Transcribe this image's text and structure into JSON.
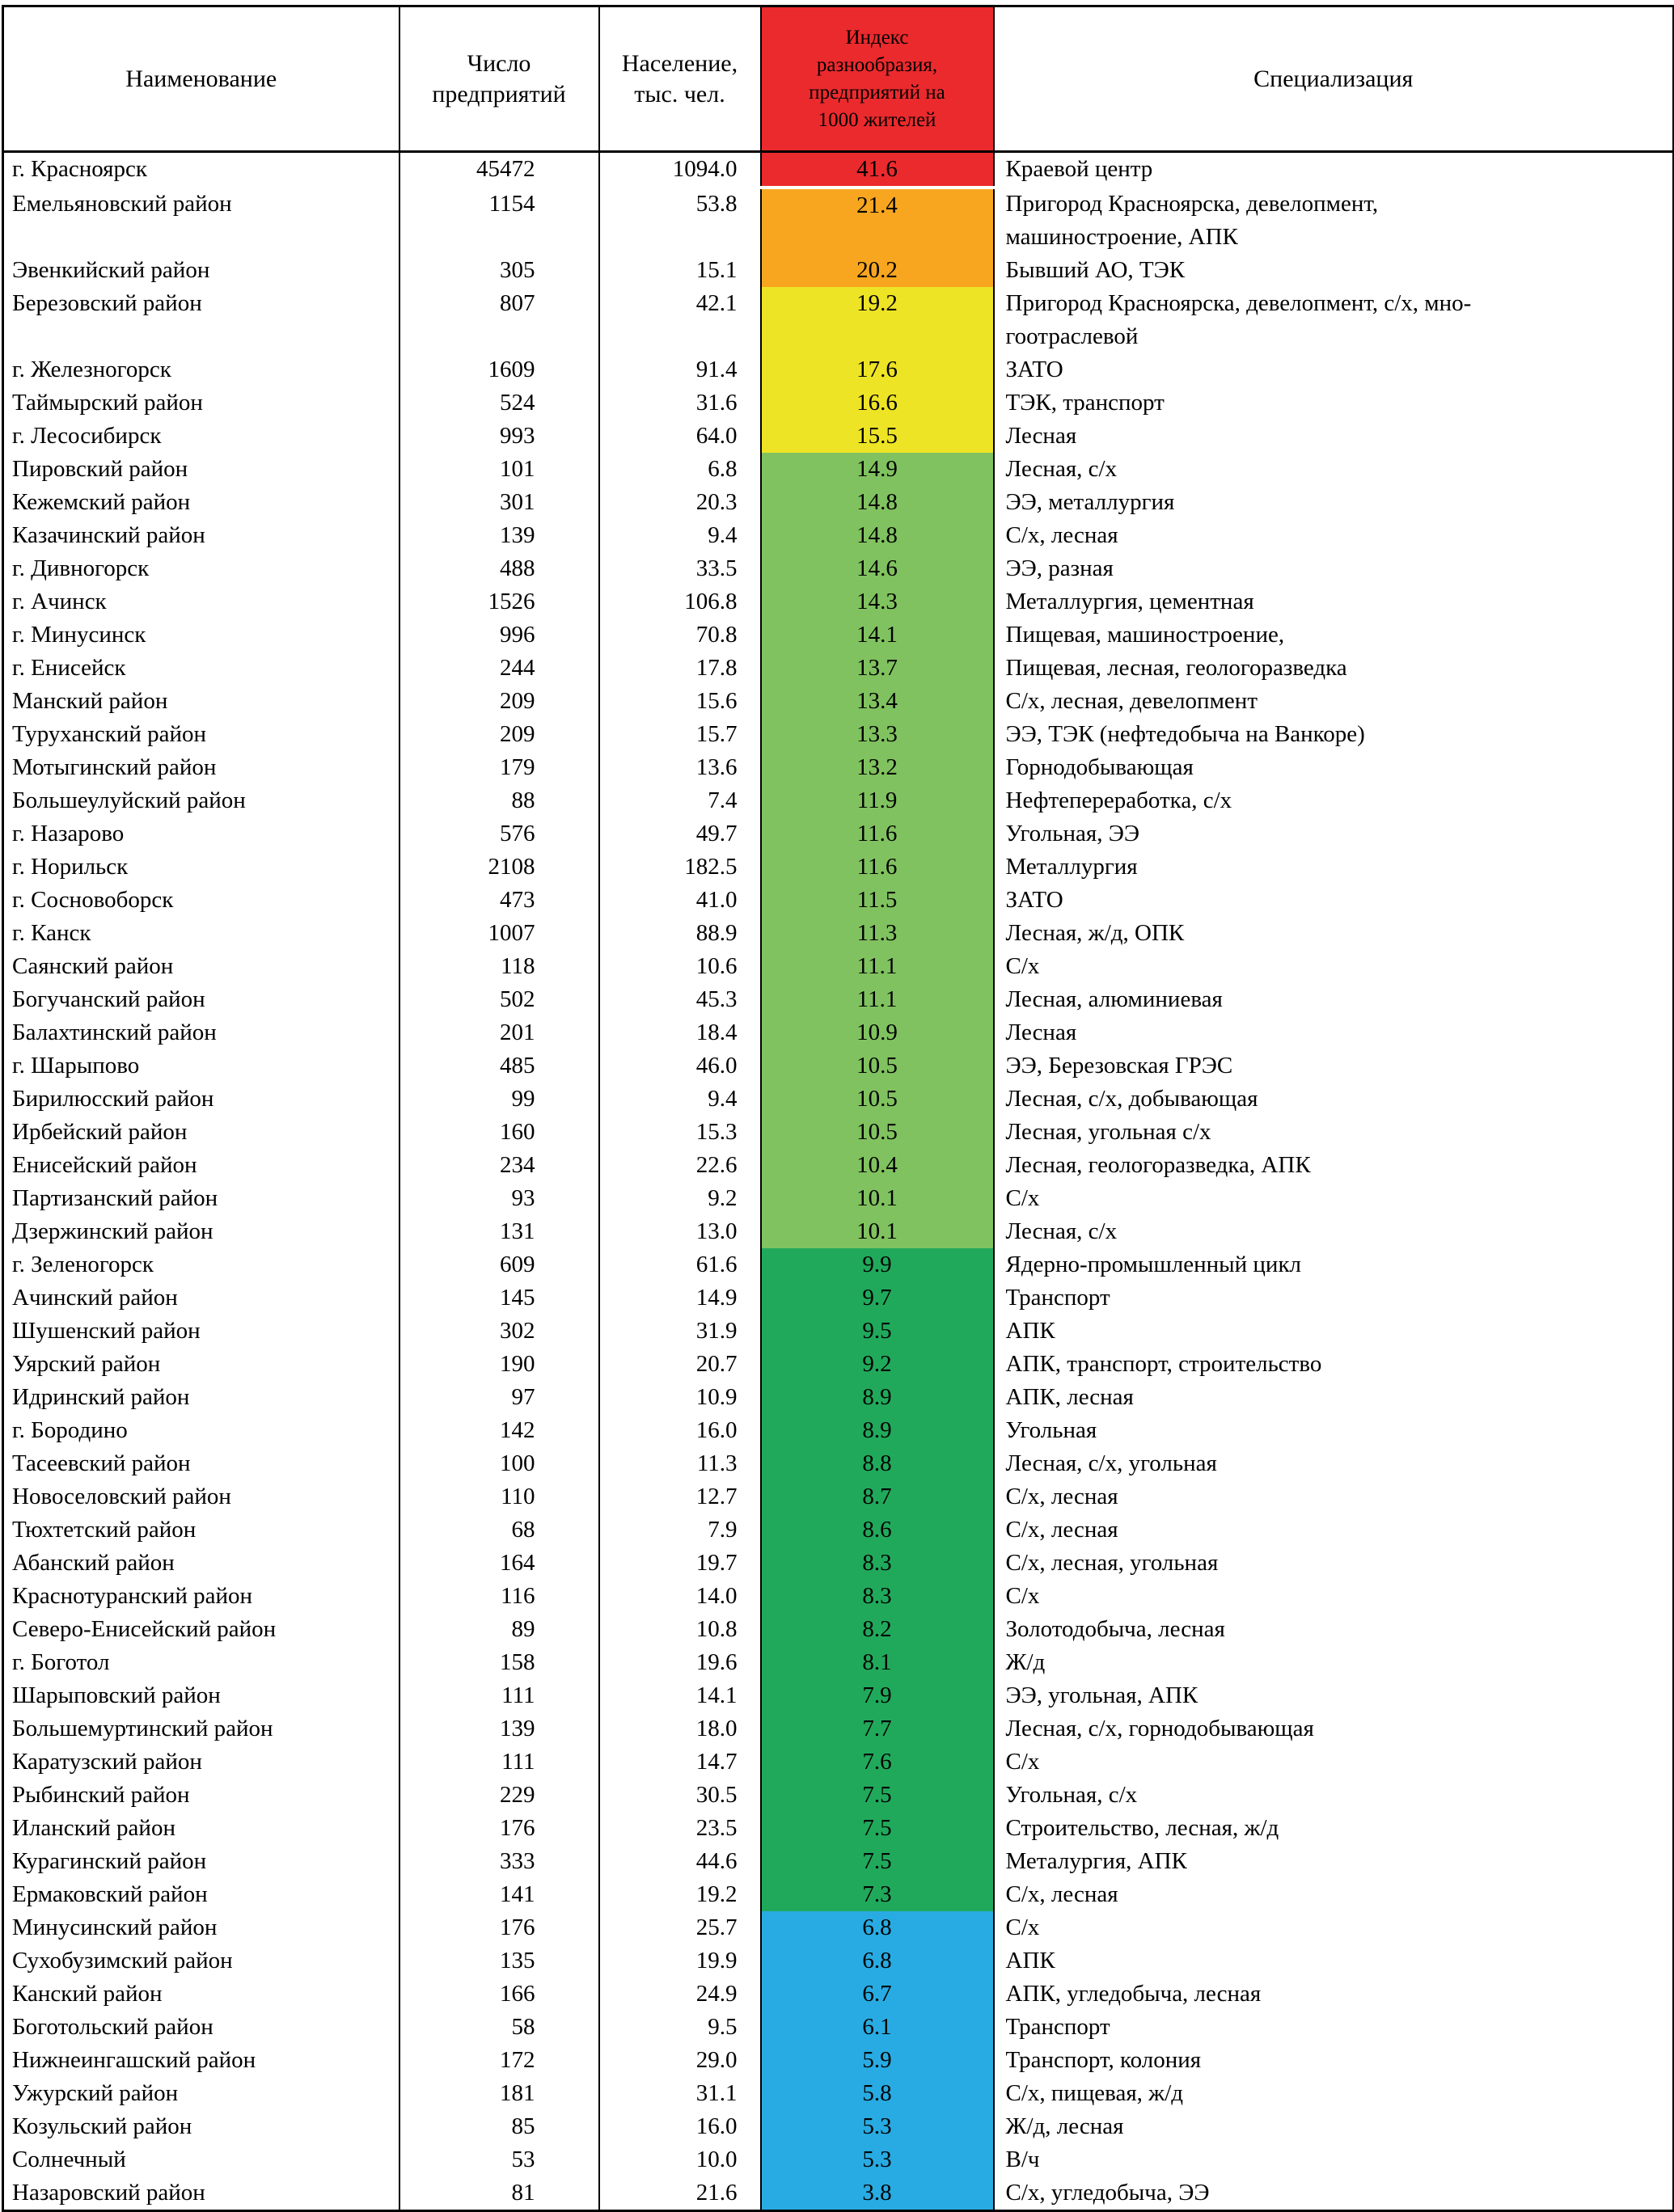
{
  "colors": {
    "red": "#EB2A2D",
    "orange": "#F8A620",
    "yellow": "#EEE426",
    "lightgreen": "#80C25F",
    "green": "#21A95B",
    "blue": "#28ABE2"
  },
  "table": {
    "headers": {
      "name": "Наименование",
      "enterprises": "Число предприятий",
      "population": "Население, тыс. чел.",
      "index": "Индекс\nразнообразия,\nпредприятий на\n1000 жителей",
      "specialization": "Специализация"
    },
    "rows": [
      {
        "name": "г. Красноярск",
        "enterprises": "45472",
        "population": "1094.0",
        "index": "41.6",
        "band": "red",
        "specialization": "Краевой центр"
      },
      {
        "name": "Емельяновский район",
        "enterprises": "1154",
        "population": "53.8",
        "index": "21.4",
        "band": "orange",
        "specialization": "Пригород Красноярска, девелопмент,\nмашиностроение, АПК"
      },
      {
        "name": "Эвенкийский район",
        "enterprises": "305",
        "population": "15.1",
        "index": "20.2",
        "band": "orange",
        "specialization": "Бывший АО, ТЭК"
      },
      {
        "name": "Березовский район",
        "enterprises": "807",
        "population": "42.1",
        "index": "19.2",
        "band": "yellow",
        "specialization": "Пригород Красноярска, девелопмент, с/х, мно-\nгоотраслевой"
      },
      {
        "name": "г. Железногорск",
        "enterprises": "1609",
        "population": "91.4",
        "index": "17.6",
        "band": "yellow",
        "specialization": "ЗАТО"
      },
      {
        "name": "Таймырский район",
        "enterprises": "524",
        "population": "31.6",
        "index": "16.6",
        "band": "yellow",
        "specialization": "ТЭК, транспорт"
      },
      {
        "name": "г. Лесосибирск",
        "enterprises": "993",
        "population": "64.0",
        "index": "15.5",
        "band": "yellow",
        "specialization": "Лесная"
      },
      {
        "name": "Пировский район",
        "enterprises": "101",
        "population": "6.8",
        "index": "14.9",
        "band": "lightgreen",
        "specialization": "Лесная, с/х"
      },
      {
        "name": "Кежемский район",
        "enterprises": "301",
        "population": "20.3",
        "index": "14.8",
        "band": "lightgreen",
        "specialization": "ЭЭ, металлургия"
      },
      {
        "name": "Казачинский район",
        "enterprises": "139",
        "population": "9.4",
        "index": "14.8",
        "band": "lightgreen",
        "specialization": "С/х, лесная"
      },
      {
        "name": "г. Дивногорск",
        "enterprises": "488",
        "population": "33.5",
        "index": "14.6",
        "band": "lightgreen",
        "specialization": "ЭЭ, разная"
      },
      {
        "name": "г. Ачинск",
        "enterprises": "1526",
        "population": "106.8",
        "index": "14.3",
        "band": "lightgreen",
        "specialization": "Металлургия, цементная"
      },
      {
        "name": "г. Минусинск",
        "enterprises": "996",
        "population": "70.8",
        "index": "14.1",
        "band": "lightgreen",
        "specialization": "Пищевая, машиностроение,"
      },
      {
        "name": "г. Енисейск",
        "enterprises": "244",
        "population": "17.8",
        "index": "13.7",
        "band": "lightgreen",
        "specialization": "Пищевая, лесная, геологоразведка"
      },
      {
        "name": "Манский район",
        "enterprises": "209",
        "population": "15.6",
        "index": "13.4",
        "band": "lightgreen",
        "specialization": "С/х, лесная, девелопмент"
      },
      {
        "name": "Туруханский район",
        "enterprises": "209",
        "population": "15.7",
        "index": "13.3",
        "band": "lightgreen",
        "specialization": "ЭЭ, ТЭК (нефтедобыча на Ванкоре)"
      },
      {
        "name": "Мотыгинский район",
        "enterprises": "179",
        "population": "13.6",
        "index": "13.2",
        "band": "lightgreen",
        "specialization": "Горнодобывающая"
      },
      {
        "name": "Большеулуйский район",
        "enterprises": "88",
        "population": "7.4",
        "index": "11.9",
        "band": "lightgreen",
        "specialization": "Нефтепереработка, с/х"
      },
      {
        "name": "г. Назарово",
        "enterprises": "576",
        "population": "49.7",
        "index": "11.6",
        "band": "lightgreen",
        "specialization": "Угольная, ЭЭ"
      },
      {
        "name": "г. Норильск",
        "enterprises": "2108",
        "population": "182.5",
        "index": "11.6",
        "band": "lightgreen",
        "specialization": "Металлургия"
      },
      {
        "name": "г. Сосновоборск",
        "enterprises": "473",
        "population": "41.0",
        "index": "11.5",
        "band": "lightgreen",
        "specialization": "ЗАТО"
      },
      {
        "name": "г. Канск",
        "enterprises": "1007",
        "population": "88.9",
        "index": "11.3",
        "band": "lightgreen",
        "specialization": "Лесная, ж/д, ОПК"
      },
      {
        "name": "Саянский район",
        "enterprises": "118",
        "population": "10.6",
        "index": "11.1",
        "band": "lightgreen",
        "specialization": "С/х"
      },
      {
        "name": "Богучанский район",
        "enterprises": "502",
        "population": "45.3",
        "index": "11.1",
        "band": "lightgreen",
        "specialization": "Лесная, алюминиевая"
      },
      {
        "name": "Балахтинский район",
        "enterprises": "201",
        "population": "18.4",
        "index": "10.9",
        "band": "lightgreen",
        "specialization": "Лесная"
      },
      {
        "name": "г. Шарыпово",
        "enterprises": "485",
        "population": "46.0",
        "index": "10.5",
        "band": "lightgreen",
        "specialization": "ЭЭ, Березовская ГРЭС"
      },
      {
        "name": "Бирилюсский район",
        "enterprises": "99",
        "population": "9.4",
        "index": "10.5",
        "band": "lightgreen",
        "specialization": "Лесная, с/х, добывающая"
      },
      {
        "name": "Ирбейский район",
        "enterprises": "160",
        "population": "15.3",
        "index": "10.5",
        "band": "lightgreen",
        "specialization": "Лесная, угольная с/х"
      },
      {
        "name": "Енисейский район",
        "enterprises": "234",
        "population": "22.6",
        "index": "10.4",
        "band": "lightgreen",
        "specialization": "Лесная, геологоразведка, АПК"
      },
      {
        "name": "Партизанский район",
        "enterprises": "93",
        "population": "9.2",
        "index": "10.1",
        "band": "lightgreen",
        "specialization": "С/х"
      },
      {
        "name": "Дзержинский район",
        "enterprises": "131",
        "population": "13.0",
        "index": "10.1",
        "band": "lightgreen",
        "specialization": "Лесная, с/х"
      },
      {
        "name": "г. Зеленогорск",
        "enterprises": "609",
        "population": "61.6",
        "index": "9.9",
        "band": "green",
        "specialization": "Ядерно-промышленный цикл"
      },
      {
        "name": "Ачинский район",
        "enterprises": "145",
        "population": "14.9",
        "index": "9.7",
        "band": "green",
        "specialization": "Транспорт"
      },
      {
        "name": "Шушенский район",
        "enterprises": "302",
        "population": "31.9",
        "index": "9.5",
        "band": "green",
        "specialization": "АПК"
      },
      {
        "name": "Уярский район",
        "enterprises": "190",
        "population": "20.7",
        "index": "9.2",
        "band": "green",
        "specialization": "АПК, транспорт, строительство"
      },
      {
        "name": "Идринский район",
        "enterprises": "97",
        "population": "10.9",
        "index": "8.9",
        "band": "green",
        "specialization": "АПК, лесная"
      },
      {
        "name": "г. Бородино",
        "enterprises": "142",
        "population": "16.0",
        "index": "8.9",
        "band": "green",
        "specialization": "Угольная"
      },
      {
        "name": "Тасеевский район",
        "enterprises": "100",
        "population": "11.3",
        "index": "8.8",
        "band": "green",
        "specialization": "Лесная, с/х, угольная"
      },
      {
        "name": "Новоселовский район",
        "enterprises": "110",
        "population": "12.7",
        "index": "8.7",
        "band": "green",
        "specialization": "С/х, лесная"
      },
      {
        "name": "Тюхтетский район",
        "enterprises": "68",
        "population": "7.9",
        "index": "8.6",
        "band": "green",
        "specialization": "С/х, лесная"
      },
      {
        "name": "Абанский район",
        "enterprises": "164",
        "population": "19.7",
        "index": "8.3",
        "band": "green",
        "specialization": "С/х, лесная, угольная"
      },
      {
        "name": "Краснотуранский район",
        "enterprises": "116",
        "population": "14.0",
        "index": "8.3",
        "band": "green",
        "specialization": "С/х"
      },
      {
        "name": "Северо-Енисейский район",
        "enterprises": "89",
        "population": "10.8",
        "index": "8.2",
        "band": "green",
        "specialization": "Золотодобыча, лесная"
      },
      {
        "name": "г. Боготол",
        "enterprises": "158",
        "population": "19.6",
        "index": "8.1",
        "band": "green",
        "specialization": "Ж/д"
      },
      {
        "name": "Шарыповский район",
        "enterprises": "111",
        "population": "14.1",
        "index": "7.9",
        "band": "green",
        "specialization": "ЭЭ, угольная, АПК"
      },
      {
        "name": "Большемуртинский район",
        "enterprises": "139",
        "population": "18.0",
        "index": "7.7",
        "band": "green",
        "specialization": "Лесная, с/х, горнодобывающая"
      },
      {
        "name": "Каратузский район",
        "enterprises": "111",
        "population": "14.7",
        "index": "7.6",
        "band": "green",
        "specialization": "С/х"
      },
      {
        "name": "Рыбинский район",
        "enterprises": "229",
        "population": "30.5",
        "index": "7.5",
        "band": "green",
        "specialization": "Угольная, с/х"
      },
      {
        "name": "Иланский район",
        "enterprises": "176",
        "population": "23.5",
        "index": "7.5",
        "band": "green",
        "specialization": "Строительство, лесная, ж/д"
      },
      {
        "name": "Курагинский район",
        "enterprises": "333",
        "population": "44.6",
        "index": "7.5",
        "band": "green",
        "specialization": "Металургия, АПК"
      },
      {
        "name": "Ермаковский район",
        "enterprises": "141",
        "population": "19.2",
        "index": "7.3",
        "band": "green",
        "specialization": "С/х, лесная"
      },
      {
        "name": "Минусинский район",
        "enterprises": "176",
        "population": "25.7",
        "index": "6.8",
        "band": "blue",
        "specialization": "С/х"
      },
      {
        "name": "Сухобузимский район",
        "enterprises": "135",
        "population": "19.9",
        "index": "6.8",
        "band": "blue",
        "specialization": "АПК"
      },
      {
        "name": "Канский район",
        "enterprises": "166",
        "population": "24.9",
        "index": "6.7",
        "band": "blue",
        "specialization": "АПК, угледобыча, лесная"
      },
      {
        "name": "Боготольский район",
        "enterprises": "58",
        "population": "9.5",
        "index": "6.1",
        "band": "blue",
        "specialization": "Транспорт"
      },
      {
        "name": "Нижнеингашский район",
        "enterprises": "172",
        "population": "29.0",
        "index": "5.9",
        "band": "blue",
        "specialization": "Транспорт, колония"
      },
      {
        "name": "Ужурский район",
        "enterprises": "181",
        "population": "31.1",
        "index": "5.8",
        "band": "blue",
        "specialization": "С/х, пищевая, ж/д"
      },
      {
        "name": "Козульский район",
        "enterprises": "85",
        "population": "16.0",
        "index": "5.3",
        "band": "blue",
        "specialization": "Ж/д, лесная"
      },
      {
        "name": "Солнечный",
        "enterprises": "53",
        "population": "10.0",
        "index": "5.3",
        "band": "blue",
        "specialization": "В/ч"
      },
      {
        "name": "Назаровский район",
        "enterprises": "81",
        "population": "21.6",
        "index": "3.8",
        "band": "blue",
        "specialization": "С/х, угледобыча, ЭЭ"
      }
    ]
  }
}
